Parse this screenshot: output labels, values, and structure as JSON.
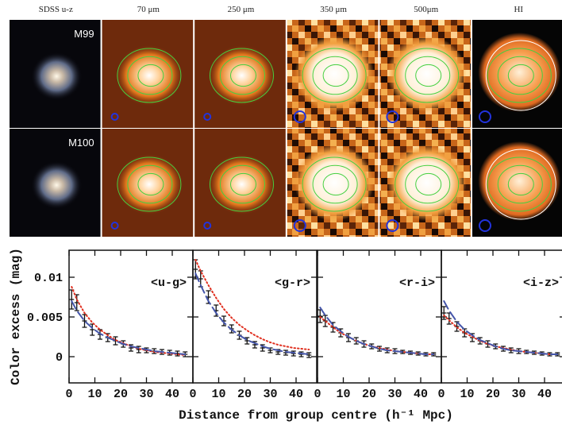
{
  "figure": {
    "columns": [
      "SDSS u-z",
      "70 μm",
      "250 μm",
      "350 μm",
      "500μm",
      "HI"
    ],
    "rows": [
      "M99",
      "M100"
    ]
  },
  "chart_data": [
    {
      "type": "line",
      "title": "<u-g>",
      "y_label": "Color excess (mag)",
      "x_label": "Distance from group centre (h⁻¹ Mpc)",
      "x": [
        1,
        3,
        6,
        9,
        12,
        15,
        18,
        21,
        24,
        27,
        30,
        33,
        36,
        39,
        42,
        45
      ],
      "xlim": [
        0,
        48
      ],
      "xticks": [
        0,
        10,
        20,
        30,
        40
      ],
      "ylim": [
        -0.0033,
        0.0134
      ],
      "yticks": [
        0,
        0.005,
        0.01
      ],
      "ytick_labels": true,
      "series": [
        {
          "style": "errorbar",
          "color": "#111111",
          "values": [
            0.0072,
            0.0068,
            0.0045,
            0.0034,
            0.0028,
            0.0024,
            0.002,
            0.0016,
            0.0011,
            0.0009,
            0.0008,
            0.0007,
            0.0006,
            0.0005,
            0.0004,
            0.0003
          ],
          "errors": [
            0.0012,
            0.001,
            0.0008,
            0.0007,
            0.0006,
            0.0005,
            0.0005,
            0.0004,
            0.0004,
            0.0004,
            0.0003,
            0.0003,
            0.0003,
            0.0003,
            0.0003,
            0.0003
          ]
        },
        {
          "style": "dotted",
          "color": "#e03020",
          "values": [
            0.0088,
            0.0072,
            0.0055,
            0.0043,
            0.0034,
            0.0027,
            0.0021,
            0.0017,
            0.0013,
            0.001,
            0.0008,
            0.0006,
            0.0005,
            0.0004,
            0.0003,
            0.0002
          ]
        },
        {
          "style": "dashed",
          "color": "#4455aa",
          "values": [
            0.007,
            0.0058,
            0.0045,
            0.0036,
            0.0029,
            0.0024,
            0.002,
            0.0016,
            0.0013,
            0.0011,
            0.0009,
            0.0007,
            0.0006,
            0.0005,
            0.0004,
            0.0003
          ]
        }
      ]
    },
    {
      "type": "line",
      "title": "<g-r>",
      "x": [
        1,
        3,
        6,
        9,
        12,
        15,
        18,
        21,
        24,
        27,
        30,
        33,
        36,
        39,
        42,
        45
      ],
      "xlim": [
        0,
        48
      ],
      "xticks": [
        0,
        10,
        20,
        30,
        40
      ],
      "ylim": [
        -0.0033,
        0.0134
      ],
      "yticks": [
        0,
        0.005,
        0.01
      ],
      "ytick_labels": false,
      "series": [
        {
          "style": "errorbar",
          "color": "#111111",
          "values": [
            0.011,
            0.0098,
            0.0075,
            0.0058,
            0.0045,
            0.0035,
            0.0027,
            0.002,
            0.0015,
            0.0011,
            0.0008,
            0.0006,
            0.0005,
            0.0004,
            0.0003,
            0.0002
          ],
          "errors": [
            0.0012,
            0.001,
            0.0008,
            0.0007,
            0.0006,
            0.0005,
            0.0005,
            0.0004,
            0.0004,
            0.0004,
            0.0003,
            0.0003,
            0.0003,
            0.0003,
            0.0003,
            0.0003
          ]
        },
        {
          "style": "dotted",
          "color": "#e03020",
          "values": [
            0.0122,
            0.0108,
            0.009,
            0.0074,
            0.006,
            0.0049,
            0.004,
            0.0033,
            0.0027,
            0.0022,
            0.0018,
            0.0015,
            0.0013,
            0.0011,
            0.001,
            0.0009
          ]
        },
        {
          "style": "dashed",
          "color": "#4455aa",
          "values": [
            0.0105,
            0.009,
            0.007,
            0.0055,
            0.0043,
            0.0034,
            0.0027,
            0.0021,
            0.0017,
            0.0013,
            0.001,
            0.0008,
            0.0006,
            0.0005,
            0.0004,
            0.0003
          ]
        }
      ]
    },
    {
      "type": "line",
      "title": "<r-i>",
      "x": [
        1,
        3,
        6,
        9,
        12,
        15,
        18,
        21,
        24,
        27,
        30,
        33,
        36,
        39,
        42,
        45
      ],
      "xlim": [
        0,
        48
      ],
      "xticks": [
        0,
        10,
        20,
        30,
        40
      ],
      "ylim": [
        -0.0033,
        0.0134
      ],
      "yticks": [
        0,
        0.005,
        0.01
      ],
      "ytick_labels": false,
      "series": [
        {
          "style": "errorbar",
          "color": "#111111",
          "values": [
            0.0051,
            0.0045,
            0.0037,
            0.003,
            0.0024,
            0.002,
            0.0016,
            0.0013,
            0.001,
            0.0008,
            0.0007,
            0.0006,
            0.0005,
            0.0004,
            0.0003,
            0.0003
          ],
          "errors": [
            0.0008,
            0.0007,
            0.0006,
            0.0005,
            0.0005,
            0.0004,
            0.0004,
            0.0003,
            0.0003,
            0.0003,
            0.0003,
            0.0002,
            0.0002,
            0.0002,
            0.0002,
            0.0002
          ]
        },
        {
          "style": "dotted",
          "color": "#e03020",
          "values": [
            0.005,
            0.0045,
            0.0037,
            0.003,
            0.0025,
            0.002,
            0.0016,
            0.0013,
            0.0011,
            0.0009,
            0.0007,
            0.0006,
            0.0005,
            0.0004,
            0.0003,
            0.0003
          ]
        },
        {
          "style": "dashed",
          "color": "#4455aa",
          "values": [
            0.0062,
            0.0052,
            0.004,
            0.0032,
            0.0025,
            0.002,
            0.0016,
            0.0013,
            0.001,
            0.0008,
            0.0007,
            0.0006,
            0.0005,
            0.0004,
            0.0003,
            0.0003
          ]
        }
      ]
    },
    {
      "type": "line",
      "title": "<i-z>",
      "x": [
        1,
        3,
        6,
        9,
        12,
        15,
        18,
        21,
        24,
        27,
        30,
        33,
        36,
        39,
        42,
        45
      ],
      "xlim": [
        0,
        48
      ],
      "xticks": [
        0,
        10,
        20,
        30,
        40
      ],
      "ylim": [
        -0.0033,
        0.0134
      ],
      "yticks": [
        0,
        0.005,
        0.01
      ],
      "ytick_labels": false,
      "series": [
        {
          "style": "errorbar",
          "color": "#111111",
          "values": [
            0.0055,
            0.0048,
            0.0038,
            0.003,
            0.0024,
            0.002,
            0.0016,
            0.0013,
            0.001,
            0.0008,
            0.0007,
            0.0006,
            0.0005,
            0.0004,
            0.0003,
            0.0003
          ],
          "errors": [
            0.0008,
            0.0007,
            0.0006,
            0.0005,
            0.0005,
            0.0004,
            0.0004,
            0.0003,
            0.0003,
            0.0003,
            0.0003,
            0.0002,
            0.0002,
            0.0002,
            0.0002,
            0.0002
          ]
        },
        {
          "style": "dotted",
          "color": "#e03020",
          "values": [
            0.0052,
            0.0046,
            0.0037,
            0.003,
            0.0025,
            0.002,
            0.0016,
            0.0013,
            0.0011,
            0.0009,
            0.0007,
            0.0006,
            0.0005,
            0.0004,
            0.0003,
            0.0003
          ]
        },
        {
          "style": "dashed",
          "color": "#4455aa",
          "values": [
            0.007,
            0.0058,
            0.0044,
            0.0034,
            0.0027,
            0.0021,
            0.0017,
            0.0013,
            0.001,
            0.0008,
            0.0007,
            0.0006,
            0.0005,
            0.0004,
            0.0003,
            0.0003
          ]
        }
      ]
    }
  ]
}
